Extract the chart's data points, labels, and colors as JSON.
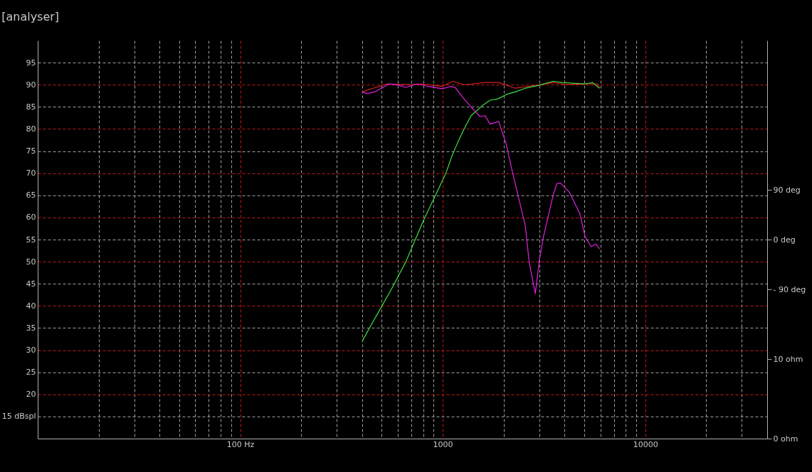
{
  "chart_data": {
    "type": "line",
    "title": "[analyser]",
    "log": "x",
    "grid": true,
    "legend": false,
    "marker": "none",
    "line_style": "solid",
    "xlim": [
      10,
      40000
    ],
    "xticks": [
      {
        "value": 20,
        "label": null
      },
      {
        "value": 30,
        "label": null
      },
      {
        "value": 40,
        "label": null
      },
      {
        "value": 50,
        "label": null
      },
      {
        "value": 60,
        "label": null
      },
      {
        "value": 70,
        "label": null
      },
      {
        "value": 80,
        "label": null
      },
      {
        "value": 90,
        "label": null
      },
      {
        "value": 100,
        "label": "100 Hz"
      },
      {
        "value": 200,
        "label": null
      },
      {
        "value": 300,
        "label": null
      },
      {
        "value": 400,
        "label": null
      },
      {
        "value": 500,
        "label": null
      },
      {
        "value": 600,
        "label": null
      },
      {
        "value": 700,
        "label": null
      },
      {
        "value": 800,
        "label": null
      },
      {
        "value": 900,
        "label": null
      },
      1000,
      {
        "value": 2000,
        "label": null
      },
      {
        "value": 3000,
        "label": null
      },
      {
        "value": 4000,
        "label": null
      },
      {
        "value": 5000,
        "label": null
      },
      {
        "value": 6000,
        "label": null
      },
      {
        "value": 7000,
        "label": null
      },
      {
        "value": 8000,
        "label": null
      },
      {
        "value": 9000,
        "label": null
      },
      10000,
      {
        "value": 20000,
        "label": null
      },
      {
        "value": 30000,
        "label": null
      }
    ],
    "ylim": [
      10,
      100
    ],
    "yticks": [
      {
        "value": 15,
        "label": "15 dBspl"
      },
      20,
      25,
      30,
      35,
      40,
      45,
      50,
      55,
      60,
      65,
      70,
      75,
      80,
      85,
      90,
      95
    ],
    "y2lim": [
      -360,
      360
    ],
    "y2ticks": [
      {
        "value": -90,
        "label": "- 90 deg"
      },
      {
        "value": 0,
        "label": "0 deg"
      },
      {
        "value": 90,
        "label": "90 deg"
      }
    ],
    "y3lim": [
      0,
      50
    ],
    "y3ticks": [
      {
        "value": 0,
        "label": "0 ohm"
      },
      {
        "value": 10,
        "label": "10 ohm"
      }
    ],
    "series": [
      {
        "color": "#d42020",
        "x": [
          400,
          530,
          690,
          790,
          990,
          1127,
          1275,
          1617,
          1890,
          2285,
          3000,
          3515,
          4100,
          5050,
          5810,
          5950
        ],
        "values": [
          88.4,
          90.2,
          90,
          90.2,
          89.6,
          90.8,
          90,
          90.5,
          90.5,
          89.2,
          90,
          90.5,
          90,
          90.2,
          90.2,
          89.4
        ]
      },
      {
        "color": "#40e040",
        "x": [
          400,
          441,
          501,
          561,
          658,
          701,
          803,
          912,
          1037,
          1113,
          1187,
          1275,
          1380,
          1581,
          1714,
          1872,
          2060,
          2285,
          2555,
          3000,
          3515,
          3900,
          4570,
          5070,
          5495,
          5950
        ],
        "values": [
          32,
          35.5,
          40,
          44,
          50,
          53,
          59.3,
          64.6,
          70,
          74,
          77,
          80,
          83,
          85.4,
          86.5,
          86.8,
          87.8,
          88.4,
          89.2,
          89.9,
          90.8,
          90.5,
          90.3,
          90.2,
          90.5,
          89.2
        ]
      },
      {
        "color": "#e020e0",
        "x": [
          400,
          424,
          462,
          543,
          607,
          657,
          746,
          853,
          997,
          1088,
          1150,
          1275,
          1416,
          1530,
          1617,
          1714,
          1890,
          1940,
          2050,
          2215,
          2555,
          2675,
          2866,
          2998,
          3140,
          3515,
          3660,
          3810,
          4220,
          4750,
          5050,
          5410,
          5700,
          5950
        ],
        "values": [
          88.4,
          88,
          88.4,
          90.2,
          89.9,
          89.4,
          90.2,
          89.6,
          89.1,
          89.6,
          89.4,
          86.8,
          84.4,
          82.8,
          83,
          81.1,
          81.7,
          80.1,
          76.9,
          70,
          58.2,
          49.7,
          42.8,
          50.2,
          55.6,
          65.2,
          67.6,
          67.8,
          65.7,
          60.9,
          55.6,
          53.4,
          54,
          52.9
        ]
      }
    ]
  }
}
